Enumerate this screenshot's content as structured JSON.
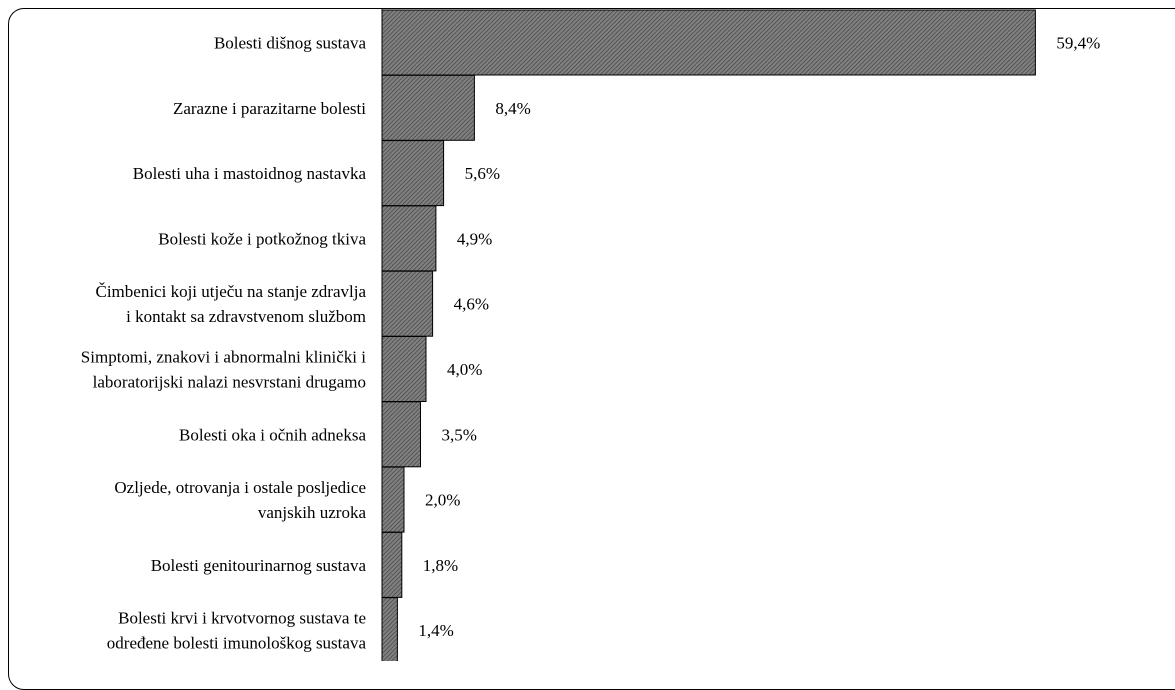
{
  "chart_data": {
    "type": "bar",
    "orientation": "horizontal",
    "categories": [
      [
        "Bolesti dišnog sustava"
      ],
      [
        "Zarazne i parazitarne bolesti"
      ],
      [
        "Bolesti uha i mastoidnog nastavka"
      ],
      [
        "Bolesti kože i potkožnog tkiva"
      ],
      [
        "Čimbenici koji utječu na stanje zdravlja",
        "i kontakt sa zdravstvenom službom"
      ],
      [
        "Simptomi, znakovi i abnormalni klinički i",
        "laboratorijski nalazi nesvrstani drugamo"
      ],
      [
        "Bolesti oka i očnih adneksa"
      ],
      [
        "Ozljede, otrovanja i ostale posljedice",
        "vanjskih uzroka"
      ],
      [
        "Bolesti genitourinarnog sustava"
      ],
      [
        "Bolesti krvi i krvotvornog sustava te",
        "određene bolesti imunološkog sustava"
      ]
    ],
    "values": [
      59.4,
      8.4,
      5.6,
      4.9,
      4.6,
      4.0,
      3.5,
      2.0,
      1.8,
      1.4
    ],
    "value_labels": [
      "59,4%",
      "8,4%",
      "5,6%",
      "4,9%",
      "4,6%",
      "4,0%",
      "3,5%",
      "2,0%",
      "1,8%",
      "1,4%"
    ],
    "xlim": [
      0,
      60
    ],
    "bar_fill": "#808080",
    "bar_hatch": "diagonal",
    "grid": false,
    "legend": "none"
  }
}
